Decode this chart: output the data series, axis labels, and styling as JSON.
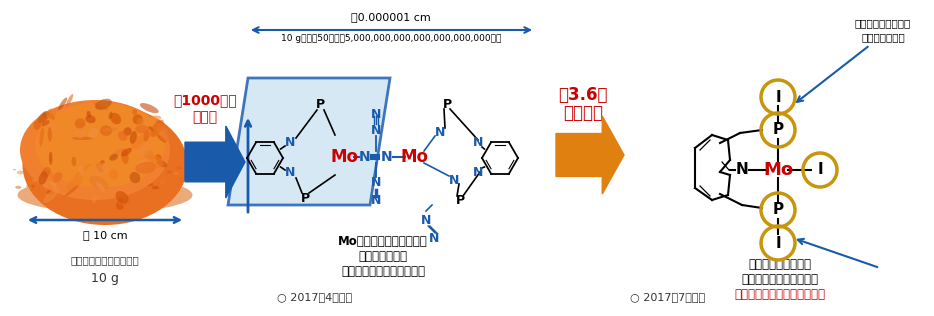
{
  "bg_color": "#ffffff",
  "fig_width": 9.34,
  "fig_height": 3.16,
  "dpi": 100,
  "powder_label1": "粉末の触媒（イメージ）",
  "powder_label2": "10 g",
  "powder_size_label": "約 10 cm",
  "magnify_text1": "約1000万倍",
  "magnify_text2": "拡大図",
  "magnify_color": "#cc0000",
  "size_label_top": "約0.000001 cm",
  "size_label_sub": "10 g中に約50核個（5,000,000,000,000,000,000,000個）",
  "improvement_text1": "ヨウ素原子を置くと",
  "improvement_text2": "新方式の窒素分解が進み",
  "improvement_text3": "大きく効率化することを発見",
  "improvement_color3": "#cc0000",
  "helmet_text1": "Moを囲むヘルメット状の",
  "helmet_text2": "部分のかたちが",
  "helmet_text3": "触媒寿命と反応速度に重要",
  "helmet_note1": "ヘルメットの改良は",
  "helmet_note2": "これからの課題",
  "performance_text1": "約3.6倍",
  "performance_text2": "性能向上",
  "performance_color": "#cc0000",
  "date1": "○ 2017年4月発表",
  "date2": "○ 2017年7月発表",
  "blue": "#1a5aaa",
  "orange": "#e08010",
  "gold": "#c8960c",
  "black": "#000000",
  "red": "#cc0000",
  "para_fill": "#d0e4f4",
  "para_edge": "#2060b0"
}
